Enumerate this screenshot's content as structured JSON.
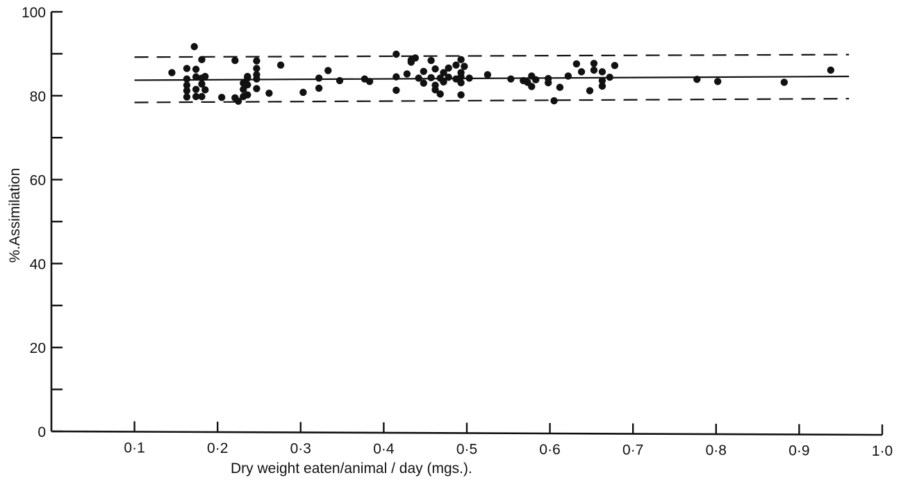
{
  "chart_data": {
    "type": "scatter",
    "title": "",
    "xlabel": "Dry weight eaten/animal / day (mgs.).",
    "ylabel": "%.Assimilation",
    "xlim": [
      0,
      1.0
    ],
    "ylim": [
      0,
      100
    ],
    "x_ticks": [
      0.1,
      0.2,
      0.3,
      0.4,
      0.5,
      0.6,
      0.7,
      0.8,
      0.9,
      1.0
    ],
    "x_tick_labels": [
      "0·1",
      "0·2",
      "0·3",
      "0·4",
      "0·5",
      "0·6",
      "0·7",
      "0·8",
      "0·9",
      "1·0"
    ],
    "y_ticks": [
      0,
      10,
      20,
      30,
      40,
      50,
      60,
      70,
      80,
      90,
      100
    ],
    "y_tick_labels": [
      {
        "value": 0,
        "label": "0"
      },
      {
        "value": 20,
        "label": "20"
      },
      {
        "value": 40,
        "label": "40"
      },
      {
        "value": 60,
        "label": "60"
      },
      {
        "value": 80,
        "label": "80"
      },
      {
        "value": 100,
        "label": "100"
      }
    ],
    "grid": false,
    "lines": [
      {
        "style": "solid",
        "x": [
          0.1,
          0.96
        ],
        "y": [
          83.7,
          84.6
        ]
      },
      {
        "style": "dashed",
        "x": [
          0.1,
          0.96
        ],
        "y": [
          89.2,
          89.8
        ]
      },
      {
        "style": "dashed",
        "x": [
          0.1,
          0.96
        ],
        "y": [
          78.4,
          79.3
        ]
      }
    ],
    "points": [
      {
        "x": 0.145,
        "y": 85.5
      },
      {
        "x": 0.163,
        "y": 86.5
      },
      {
        "x": 0.163,
        "y": 84.0
      },
      {
        "x": 0.163,
        "y": 82.5
      },
      {
        "x": 0.163,
        "y": 81.2
      },
      {
        "x": 0.163,
        "y": 79.7
      },
      {
        "x": 0.172,
        "y": 91.7
      },
      {
        "x": 0.174,
        "y": 86.3
      },
      {
        "x": 0.174,
        "y": 84.5
      },
      {
        "x": 0.174,
        "y": 81.5
      },
      {
        "x": 0.174,
        "y": 79.8
      },
      {
        "x": 0.181,
        "y": 88.6
      },
      {
        "x": 0.181,
        "y": 84.2
      },
      {
        "x": 0.181,
        "y": 82.8
      },
      {
        "x": 0.181,
        "y": 79.8
      },
      {
        "x": 0.185,
        "y": 84.6
      },
      {
        "x": 0.185,
        "y": 81.4
      },
      {
        "x": 0.205,
        "y": 79.6
      },
      {
        "x": 0.221,
        "y": 88.4
      },
      {
        "x": 0.221,
        "y": 79.5
      },
      {
        "x": 0.225,
        "y": 78.7
      },
      {
        "x": 0.231,
        "y": 83.0
      },
      {
        "x": 0.231,
        "y": 81.5
      },
      {
        "x": 0.231,
        "y": 79.8
      },
      {
        "x": 0.236,
        "y": 84.6
      },
      {
        "x": 0.236,
        "y": 82.6
      },
      {
        "x": 0.236,
        "y": 80.2
      },
      {
        "x": 0.236,
        "y": 84.2
      },
      {
        "x": 0.247,
        "y": 88.3
      },
      {
        "x": 0.247,
        "y": 86.5
      },
      {
        "x": 0.247,
        "y": 85.0
      },
      {
        "x": 0.247,
        "y": 84.0
      },
      {
        "x": 0.247,
        "y": 81.7
      },
      {
        "x": 0.262,
        "y": 80.6
      },
      {
        "x": 0.276,
        "y": 87.3
      },
      {
        "x": 0.303,
        "y": 80.8
      },
      {
        "x": 0.322,
        "y": 84.2
      },
      {
        "x": 0.322,
        "y": 81.8
      },
      {
        "x": 0.333,
        "y": 86.0
      },
      {
        "x": 0.347,
        "y": 83.6
      },
      {
        "x": 0.377,
        "y": 84.0
      },
      {
        "x": 0.383,
        "y": 83.4
      },
      {
        "x": 0.415,
        "y": 89.9
      },
      {
        "x": 0.415,
        "y": 84.5
      },
      {
        "x": 0.415,
        "y": 81.3
      },
      {
        "x": 0.428,
        "y": 85.2
      },
      {
        "x": 0.433,
        "y": 88.5
      },
      {
        "x": 0.433,
        "y": 88.0
      },
      {
        "x": 0.438,
        "y": 89.0
      },
      {
        "x": 0.442,
        "y": 84.2
      },
      {
        "x": 0.448,
        "y": 85.8
      },
      {
        "x": 0.448,
        "y": 83.0
      },
      {
        "x": 0.457,
        "y": 88.4
      },
      {
        "x": 0.457,
        "y": 84.3
      },
      {
        "x": 0.462,
        "y": 86.4
      },
      {
        "x": 0.462,
        "y": 82.5
      },
      {
        "x": 0.462,
        "y": 81.4
      },
      {
        "x": 0.468,
        "y": 80.4
      },
      {
        "x": 0.468,
        "y": 84.2
      },
      {
        "x": 0.472,
        "y": 85.5
      },
      {
        "x": 0.472,
        "y": 83.3
      },
      {
        "x": 0.478,
        "y": 86.6
      },
      {
        "x": 0.478,
        "y": 84.4
      },
      {
        "x": 0.487,
        "y": 87.3
      },
      {
        "x": 0.487,
        "y": 84.0
      },
      {
        "x": 0.493,
        "y": 88.6
      },
      {
        "x": 0.493,
        "y": 85.5
      },
      {
        "x": 0.493,
        "y": 84.5
      },
      {
        "x": 0.493,
        "y": 83.1
      },
      {
        "x": 0.493,
        "y": 80.2
      },
      {
        "x": 0.497,
        "y": 87.0
      },
      {
        "x": 0.503,
        "y": 84.2
      },
      {
        "x": 0.525,
        "y": 85.0
      },
      {
        "x": 0.553,
        "y": 84.0
      },
      {
        "x": 0.568,
        "y": 83.6
      },
      {
        "x": 0.573,
        "y": 83.2
      },
      {
        "x": 0.578,
        "y": 84.7
      },
      {
        "x": 0.578,
        "y": 82.2
      },
      {
        "x": 0.583,
        "y": 83.8
      },
      {
        "x": 0.598,
        "y": 84.1
      },
      {
        "x": 0.598,
        "y": 83.1
      },
      {
        "x": 0.605,
        "y": 78.8
      },
      {
        "x": 0.612,
        "y": 82.0
      },
      {
        "x": 0.622,
        "y": 84.7
      },
      {
        "x": 0.632,
        "y": 87.6
      },
      {
        "x": 0.638,
        "y": 85.7
      },
      {
        "x": 0.648,
        "y": 81.2
      },
      {
        "x": 0.653,
        "y": 87.7
      },
      {
        "x": 0.653,
        "y": 86.1
      },
      {
        "x": 0.663,
        "y": 85.7
      },
      {
        "x": 0.663,
        "y": 83.6
      },
      {
        "x": 0.663,
        "y": 82.3
      },
      {
        "x": 0.672,
        "y": 84.4
      },
      {
        "x": 0.678,
        "y": 87.2
      },
      {
        "x": 0.777,
        "y": 83.9
      },
      {
        "x": 0.802,
        "y": 83.4
      },
      {
        "x": 0.882,
        "y": 83.2
      },
      {
        "x": 0.938,
        "y": 86.1
      }
    ],
    "series": [
      {
        "name": "",
        "values": []
      }
    ]
  }
}
